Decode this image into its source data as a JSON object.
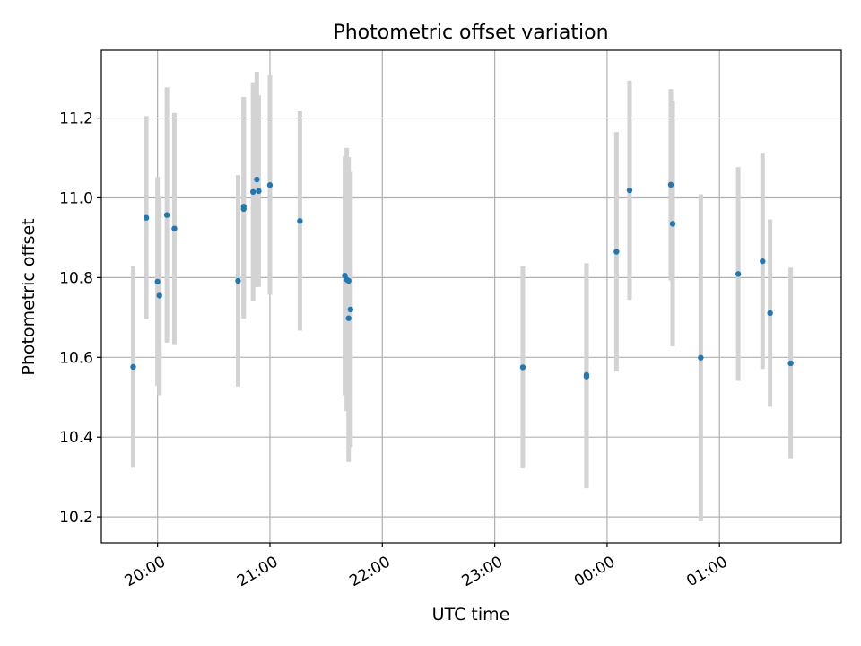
{
  "chart_data": {
    "type": "scatter",
    "title": "Photometric offset variation",
    "xlabel": "UTC time",
    "ylabel": "Photometric offset",
    "x_unit": "UTC time (HH:MM)",
    "xlim": [
      "19:30",
      "02:05"
    ],
    "ylim": [
      10.135,
      11.37
    ],
    "xticks": [
      "20:00",
      "21:00",
      "22:00",
      "23:00",
      "00:00",
      "01:00"
    ],
    "yticks": [
      "10.2",
      "10.4",
      "10.6",
      "10.8",
      "11.0",
      "11.2"
    ],
    "grid": true,
    "colors": {
      "point": "#1f77b4",
      "errorbar": "#d3d3d3",
      "grid": "#b0b0b0"
    },
    "series": [
      {
        "points": [
          {
            "x": "19:47",
            "y": 10.576,
            "err": 0.253
          },
          {
            "x": "19:54",
            "y": 10.95,
            "err": 0.255
          },
          {
            "x": "20:00",
            "y": 10.79,
            "err": 0.262
          },
          {
            "x": "20:01",
            "y": 10.755,
            "err": 0.25
          },
          {
            "x": "20:05",
            "y": 10.957,
            "err": 0.32
          },
          {
            "x": "20:09",
            "y": 10.923,
            "err": 0.29
          },
          {
            "x": "20:43",
            "y": 10.792,
            "err": 0.265
          },
          {
            "x": "20:46",
            "y": 10.978,
            "err": 0.275
          },
          {
            "x": "20:46",
            "y": 10.972,
            "err": 0.275
          },
          {
            "x": "20:51",
            "y": 11.015,
            "err": 0.275
          },
          {
            "x": "20:53",
            "y": 11.046,
            "err": 0.27
          },
          {
            "x": "20:54",
            "y": 11.017,
            "err": 0.24
          },
          {
            "x": "21:00",
            "y": 11.032,
            "err": 0.275
          },
          {
            "x": "21:16",
            "y": 10.942,
            "err": 0.275
          },
          {
            "x": "21:40",
            "y": 10.805,
            "err": 0.3
          },
          {
            "x": "21:41",
            "y": 10.795,
            "err": 0.33
          },
          {
            "x": "21:42",
            "y": 10.792,
            "err": 0.31
          },
          {
            "x": "21:42",
            "y": 10.698,
            "err": 0.36
          },
          {
            "x": "21:43",
            "y": 10.72,
            "err": 0.345
          },
          {
            "x": "23:15",
            "y": 10.575,
            "err": 0.253
          },
          {
            "x": "23:49",
            "y": 10.556,
            "err": 0.28
          },
          {
            "x": "23:49",
            "y": 10.552,
            "err": 0.28
          },
          {
            "x": "00:05",
            "y": 10.865,
            "err": 0.3
          },
          {
            "x": "00:12",
            "y": 11.019,
            "err": 0.275
          },
          {
            "x": "00:34",
            "y": 11.033,
            "err": 0.24
          },
          {
            "x": "00:35",
            "y": 10.935,
            "err": 0.307
          },
          {
            "x": "00:50",
            "y": 10.599,
            "err": 0.41
          },
          {
            "x": "01:10",
            "y": 10.809,
            "err": 0.268
          },
          {
            "x": "01:23",
            "y": 10.841,
            "err": 0.27
          },
          {
            "x": "01:27",
            "y": 10.711,
            "err": 0.235
          },
          {
            "x": "01:38",
            "y": 10.585,
            "err": 0.24
          }
        ]
      }
    ]
  }
}
